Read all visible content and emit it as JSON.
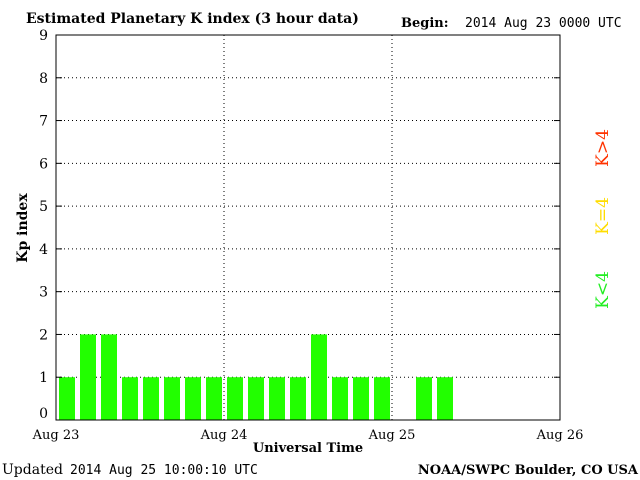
{
  "header": {
    "title": "Estimated Planetary K index (3 hour data)",
    "begin_label": "Begin:",
    "begin_value": "2014 Aug 23 0000 UTC"
  },
  "footer": {
    "updated_label": "Updated",
    "updated_value": "2014 Aug 25 10:00:10 UTC",
    "credit": "NOAA/SWPC Boulder, CO USA"
  },
  "legend": [
    {
      "label": "K>4",
      "color": "#ff3300"
    },
    {
      "label": "K=4",
      "color": "#ffdd00"
    },
    {
      "label": "K<4",
      "color": "#22ee22"
    }
  ],
  "chart_data": {
    "type": "bar",
    "title": "Estimated Planetary K index (3 hour data)",
    "xlabel": "Universal Time",
    "ylabel": "Kp index",
    "ylim": [
      0,
      9
    ],
    "yticks": [
      0,
      1,
      2,
      3,
      4,
      5,
      6,
      7,
      8,
      9
    ],
    "xticks": [
      "Aug 23",
      "Aug 24",
      "Aug 25",
      "Aug 26"
    ],
    "bin_hours": 3,
    "grid": true,
    "bar_color": "#22ff00",
    "values": [
      1,
      2,
      2,
      1,
      1,
      1,
      1,
      1,
      1,
      1,
      1,
      1,
      2,
      1,
      1,
      1,
      null,
      1,
      1
    ]
  }
}
